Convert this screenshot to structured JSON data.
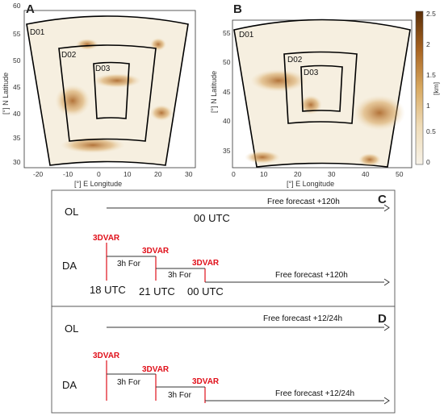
{
  "panels": {
    "A": {
      "letter": "A",
      "ylabel": "[°] N Latitude",
      "xlabel": "[°] E Longitude",
      "yticks": [
        "60",
        "55",
        "50",
        "45",
        "40",
        "35",
        "30"
      ],
      "xticks": [
        "-20",
        "-10",
        "0",
        "10",
        "20",
        "30"
      ],
      "domains": [
        "D01",
        "D02",
        "D03"
      ]
    },
    "B": {
      "letter": "B",
      "ylabel": "[°] N Latitude",
      "xlabel": "[°] E Longitude",
      "yticks": [
        "55",
        "50",
        "45",
        "40",
        "35"
      ],
      "xticks": [
        "0",
        "10",
        "20",
        "30",
        "40",
        "50"
      ],
      "domains": [
        "D01",
        "D02",
        "D03"
      ]
    },
    "colorbar": {
      "ticks": [
        "2.5",
        "2",
        "1.5",
        "1",
        "0.5",
        "0"
      ],
      "unit": "[km]",
      "colors": [
        "#f7f2e8",
        "#e9cfa0",
        "#c98c3a",
        "#8a4a10",
        "#5a2e08"
      ]
    },
    "C": {
      "letter": "C",
      "ol_label": "OL",
      "ol_forecast": "Free forecast +120h",
      "ol_time": "00 UTC",
      "da_label": "DA",
      "assim_label": "3DVAR",
      "for_label": "3h For",
      "da_forecast": "Free forecast +120h",
      "times": [
        "18 UTC",
        "21 UTC",
        "00 UTC"
      ]
    },
    "D": {
      "letter": "D",
      "ol_label": "OL",
      "ol_forecast": "Free forecast +12/24h",
      "da_label": "DA",
      "assim_label": "3DVAR",
      "for_label": "3h For",
      "da_forecast": "Free forecast +12/24h"
    }
  }
}
